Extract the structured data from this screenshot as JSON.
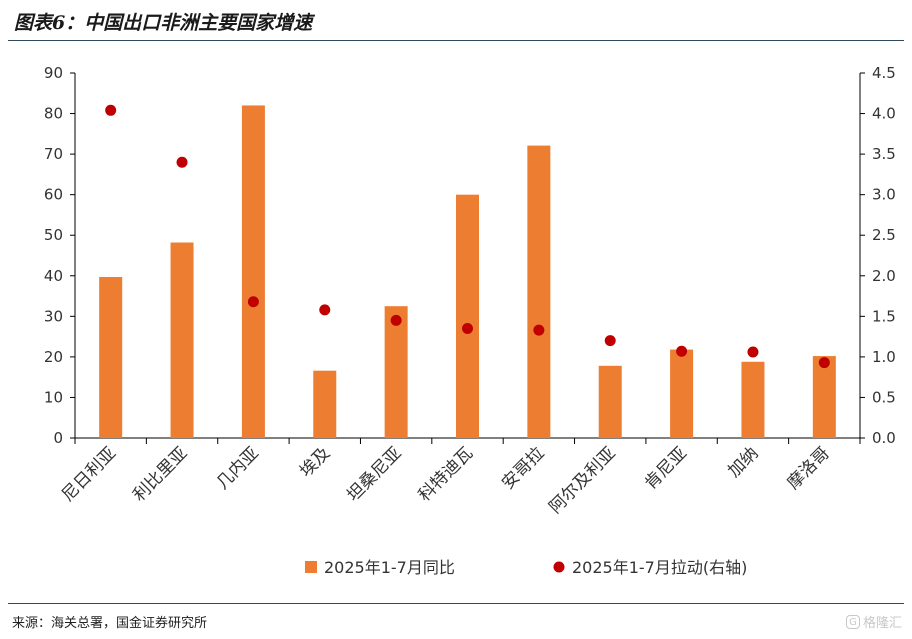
{
  "title": "图表6：中国出口非洲主要国家增速",
  "source": "来源：海关总署，国金证券研究所",
  "watermark": "格隆汇",
  "chart_data": {
    "type": "bar",
    "categories": [
      "尼日利亚",
      "利比里亚",
      "几内亚",
      "埃及",
      "坦桑尼亚",
      "科特迪瓦",
      "安哥拉",
      "阿尔及利亚",
      "肯尼亚",
      "加纳",
      "摩洛哥"
    ],
    "series": [
      {
        "name": "2025年1-7月同比",
        "type": "bar",
        "axis": "left",
        "color": "#ED7D31",
        "values": [
          39.7,
          48.2,
          82.0,
          16.6,
          32.5,
          60.0,
          72.1,
          17.8,
          21.8,
          18.8,
          20.2
        ]
      },
      {
        "name": "2025年1-7月拉动(右轴)",
        "type": "scatter",
        "axis": "right",
        "color": "#C00000",
        "values": [
          4.04,
          3.4,
          1.68,
          1.58,
          1.45,
          1.35,
          1.33,
          1.2,
          1.07,
          1.06,
          0.93
        ]
      }
    ],
    "left_axis": {
      "min": 0,
      "max": 90,
      "step": 10,
      "ticks": [
        "0",
        "10",
        "20",
        "30",
        "40",
        "50",
        "60",
        "70",
        "80",
        "90"
      ]
    },
    "right_axis": {
      "min": 0,
      "max": 4.5,
      "step": 0.5,
      "ticks": [
        "0.0",
        "0.5",
        "1.0",
        "1.5",
        "2.0",
        "2.5",
        "3.0",
        "3.5",
        "4.0",
        "4.5"
      ]
    },
    "grid": false,
    "legend_position": "bottom"
  }
}
